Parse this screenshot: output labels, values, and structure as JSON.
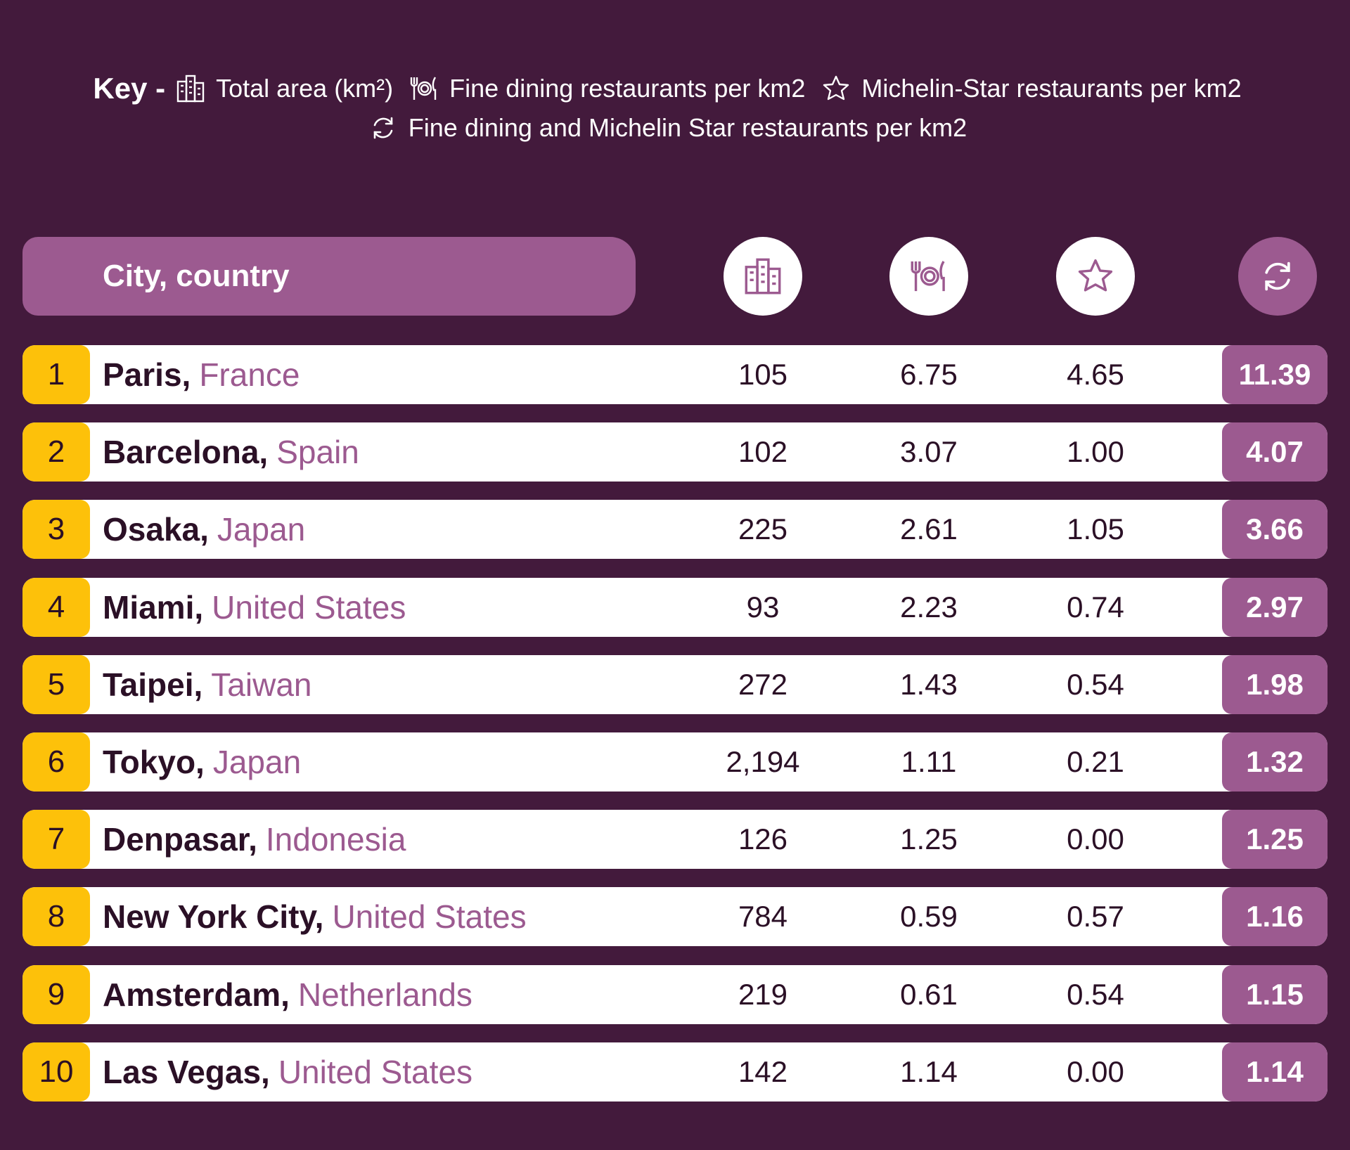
{
  "key": {
    "title": "Key -",
    "items": [
      {
        "icon": "buildings-icon",
        "label": "Total area (km²)"
      },
      {
        "icon": "dining-icon",
        "label": "Fine dining restaurants per km2"
      },
      {
        "icon": "star-icon",
        "label": "Michelin-Star restaurants per km2"
      },
      {
        "icon": "refresh-icon",
        "label": "Fine dining and Michelin Star restaurants per km2"
      }
    ]
  },
  "header": {
    "city_label": "City, country",
    "icons": [
      "buildings-icon",
      "dining-icon",
      "star-icon",
      "refresh-icon"
    ]
  },
  "colors": {
    "background": "#431a3c",
    "accent": "#9c5a90",
    "rank": "#fdc10a",
    "row": "#ffffff"
  },
  "chart_data": {
    "type": "table",
    "columns": [
      "City, country",
      "Total area (km²)",
      "Fine dining restaurants per km2",
      "Michelin-Star restaurants per km2",
      "Fine dining and Michelin Star restaurants per km2"
    ],
    "rows": [
      {
        "rank": "1",
        "city": "Paris,",
        "country": "France",
        "area": "105",
        "fine_dining": "6.75",
        "michelin": "4.65",
        "total": "11.39"
      },
      {
        "rank": "2",
        "city": "Barcelona,",
        "country": "Spain",
        "area": "102",
        "fine_dining": "3.07",
        "michelin": "1.00",
        "total": "4.07"
      },
      {
        "rank": "3",
        "city": "Osaka,",
        "country": "Japan",
        "area": "225",
        "fine_dining": "2.61",
        "michelin": "1.05",
        "total": "3.66"
      },
      {
        "rank": "4",
        "city": "Miami,",
        "country": "United States",
        "area": "93",
        "fine_dining": "2.23",
        "michelin": "0.74",
        "total": "2.97"
      },
      {
        "rank": "5",
        "city": "Taipei,",
        "country": "Taiwan",
        "area": "272",
        "fine_dining": "1.43",
        "michelin": "0.54",
        "total": "1.98"
      },
      {
        "rank": "6",
        "city": "Tokyo,",
        "country": "Japan",
        "area": "2,194",
        "fine_dining": "1.11",
        "michelin": "0.21",
        "total": "1.32"
      },
      {
        "rank": "7",
        "city": "Denpasar,",
        "country": "Indonesia",
        "area": "126",
        "fine_dining": "1.25",
        "michelin": "0.00",
        "total": "1.25"
      },
      {
        "rank": "8",
        "city": "New York City,",
        "country": "United States",
        "area": "784",
        "fine_dining": "0.59",
        "michelin": "0.57",
        "total": "1.16"
      },
      {
        "rank": "9",
        "city": "Amsterdam,",
        "country": "Netherlands",
        "area": "219",
        "fine_dining": "0.61",
        "michelin": "0.54",
        "total": "1.15"
      },
      {
        "rank": "10",
        "city": "Las Vegas,",
        "country": "United States",
        "area": "142",
        "fine_dining": "1.14",
        "michelin": "0.00",
        "total": "1.14"
      }
    ]
  }
}
